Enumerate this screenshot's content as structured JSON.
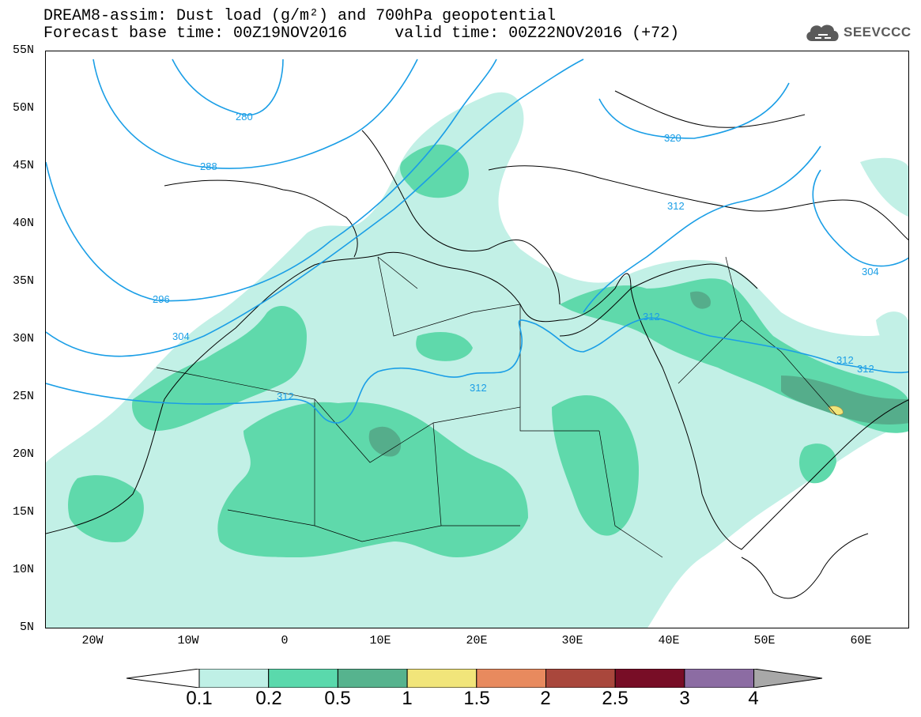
{
  "title": {
    "line1": "DREAM8-assim: Dust load (g/m²) and 700hPa geopotential",
    "line2": "Forecast base time: 00Z19NOV2016     valid time: 00Z22NOV2016 (+72)"
  },
  "logo": {
    "text": "SEEVCCC",
    "icon": "cloud-logo-icon"
  },
  "axes": {
    "lat_labels": [
      "55N",
      "50N",
      "45N",
      "40N",
      "35N",
      "30N",
      "25N",
      "20N",
      "15N",
      "10N",
      "5N"
    ],
    "lon_labels": [
      "20W",
      "10W",
      "0",
      "10E",
      "20E",
      "30E",
      "40E",
      "50E",
      "60E"
    ]
  },
  "contours": {
    "labels": [
      "280",
      "288",
      "296",
      "304",
      "312",
      "312",
      "312",
      "312",
      "312",
      "320",
      "304",
      "312"
    ],
    "color": "#1a9ee6"
  },
  "colorbar": {
    "labels": [
      "0.1",
      "0.2",
      "0.5",
      "1",
      "1.5",
      "2",
      "2.5",
      "3",
      "4"
    ],
    "colors": [
      "#bff0e6",
      "#5ad9ac",
      "#56b38e",
      "#f1e57a",
      "#e88a5e",
      "#a9473c",
      "#780d26",
      "#8c6ca3",
      "#a8a8a8"
    ]
  },
  "dust_colors": {
    "light": "#c2f0e6",
    "mid": "#5fd9ab",
    "dark": "#55ad8b",
    "yellow": "#f1e57a"
  }
}
